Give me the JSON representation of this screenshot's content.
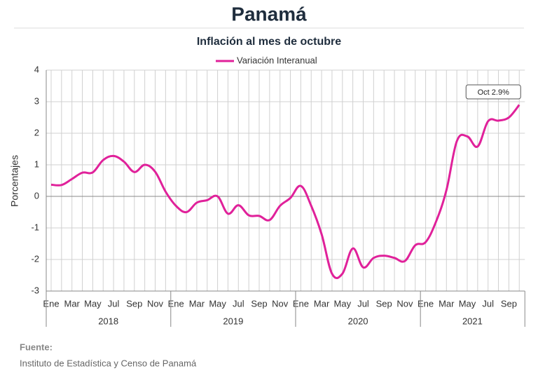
{
  "chart_data": {
    "type": "line",
    "title": "Panamá",
    "subtitle": "Inflación al mes de octubre",
    "y_label": "Porcentajes",
    "categories": [
      "Ene",
      null,
      "Mar",
      null,
      "May",
      null,
      "Jul",
      null,
      "Sep",
      null,
      "Nov",
      null,
      "Ene",
      null,
      "Mar",
      null,
      "May",
      null,
      "Jul",
      null,
      "Sep",
      null,
      "Nov",
      null,
      "Ene",
      null,
      "Mar",
      null,
      "May",
      null,
      "Jul",
      null,
      "Sep",
      null,
      "Nov",
      null,
      "Ene",
      null,
      "Mar",
      null,
      "May",
      null,
      "Jul",
      null,
      "Sep",
      null
    ],
    "year_labels": [
      "2018",
      "2019",
      "2020",
      "2021"
    ],
    "series": [
      {
        "name": "Variación Interanual",
        "color": "#e0219a",
        "values": [
          0.37,
          0.36,
          0.55,
          0.75,
          0.76,
          1.15,
          1.28,
          1.1,
          0.77,
          1.0,
          0.78,
          0.15,
          -0.3,
          -0.5,
          -0.2,
          -0.12,
          0.0,
          -0.55,
          -0.28,
          -0.6,
          -0.62,
          -0.75,
          -0.3,
          -0.05,
          0.33,
          -0.3,
          -1.2,
          -2.45,
          -2.45,
          -1.65,
          -2.25,
          -1.95,
          -1.88,
          -1.95,
          -2.05,
          -1.55,
          -1.45,
          -0.8,
          0.2,
          1.75,
          1.9,
          1.58,
          2.38,
          2.4,
          2.5,
          2.9
        ]
      }
    ],
    "annotation": "Oct 2.9%",
    "ylim": [
      -3,
      4
    ],
    "yticks": [
      -3,
      -2,
      -1,
      0,
      1,
      2,
      3,
      4
    ],
    "grid": true,
    "source_title": "Fuente:",
    "source": "Instituto de Estadística y Censo de Panamá"
  }
}
